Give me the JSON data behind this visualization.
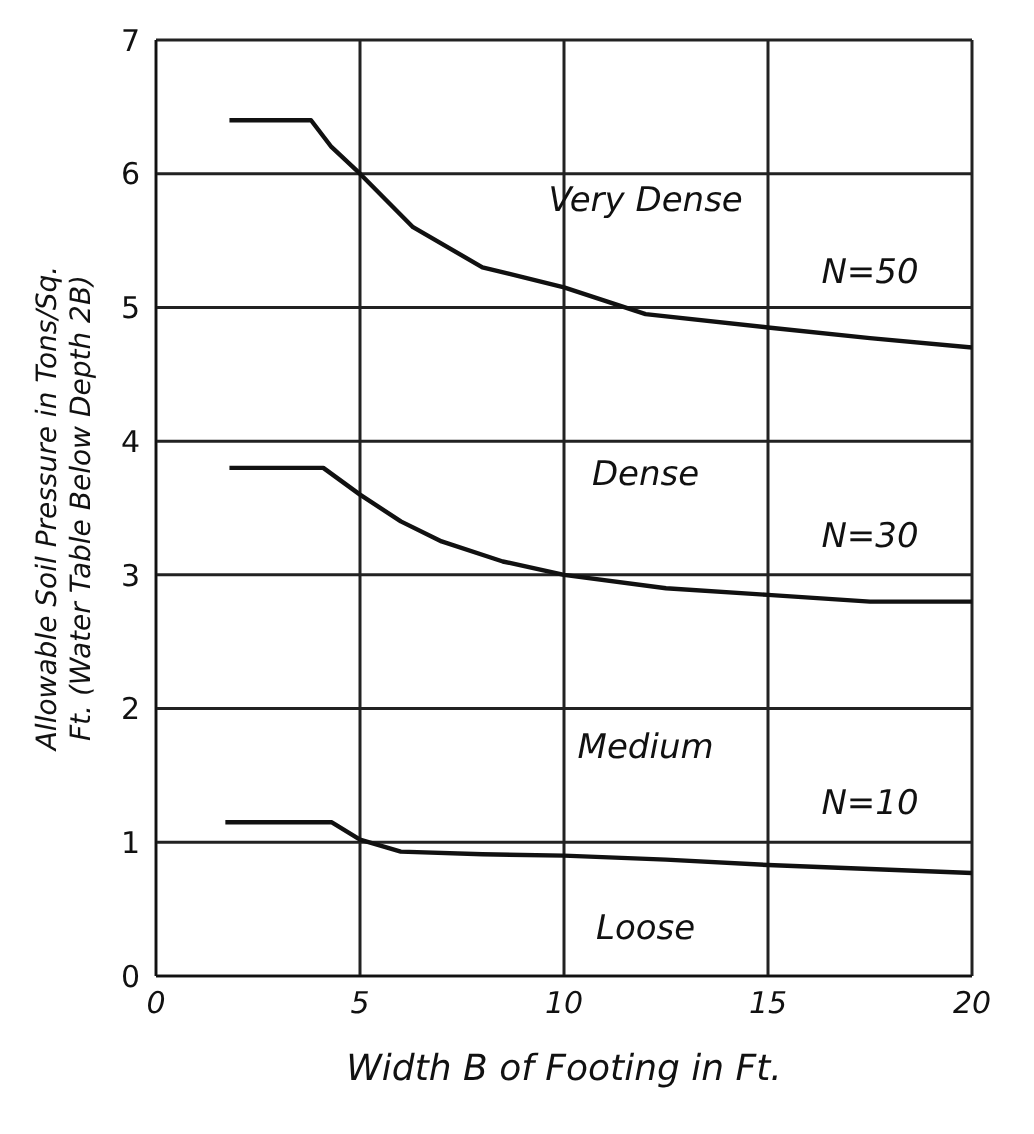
{
  "chart_data": {
    "type": "line",
    "xlabel": "Width B of Footing in Ft.",
    "ylabel": "Allowable Soil Pressure in Tons/Sq. Ft. (Water Table Below Depth 2B)",
    "series": [
      {
        "name": "N=50",
        "color": "#111111",
        "x": [
          1.8,
          3.8,
          4.3,
          5,
          6.3,
          8,
          10,
          12,
          15,
          17.5,
          20
        ],
        "values": [
          6.4,
          6.4,
          6.2,
          6.0,
          5.6,
          5.3,
          5.15,
          4.95,
          4.85,
          4.77,
          4.7
        ]
      },
      {
        "name": "N=30",
        "color": "#111111",
        "x": [
          1.8,
          4.1,
          5,
          6,
          7,
          8.5,
          10,
          12.5,
          15,
          17.5,
          20
        ],
        "values": [
          3.8,
          3.8,
          3.6,
          3.4,
          3.25,
          3.1,
          3.0,
          2.9,
          2.85,
          2.8,
          2.8
        ]
      },
      {
        "name": "N=10",
        "color": "#111111",
        "x": [
          1.7,
          4.3,
          5,
          6,
          8,
          10,
          12.5,
          15,
          17.5,
          20
        ],
        "values": [
          1.15,
          1.15,
          1.02,
          0.93,
          0.91,
          0.9,
          0.87,
          0.83,
          0.8,
          0.77
        ]
      }
    ],
    "annotations": [
      "Very Dense",
      "Dense",
      "Medium",
      "Loose"
    ],
    "xlim": [
      0,
      20
    ],
    "xticks": [
      0,
      5,
      10,
      15,
      20
    ],
    "ylim": [
      0,
      7
    ],
    "yticks": [
      0,
      1,
      2,
      3,
      4,
      5,
      6,
      7
    ],
    "grid": true,
    "legend": false,
    "marker": "none",
    "line_style": "solid"
  }
}
